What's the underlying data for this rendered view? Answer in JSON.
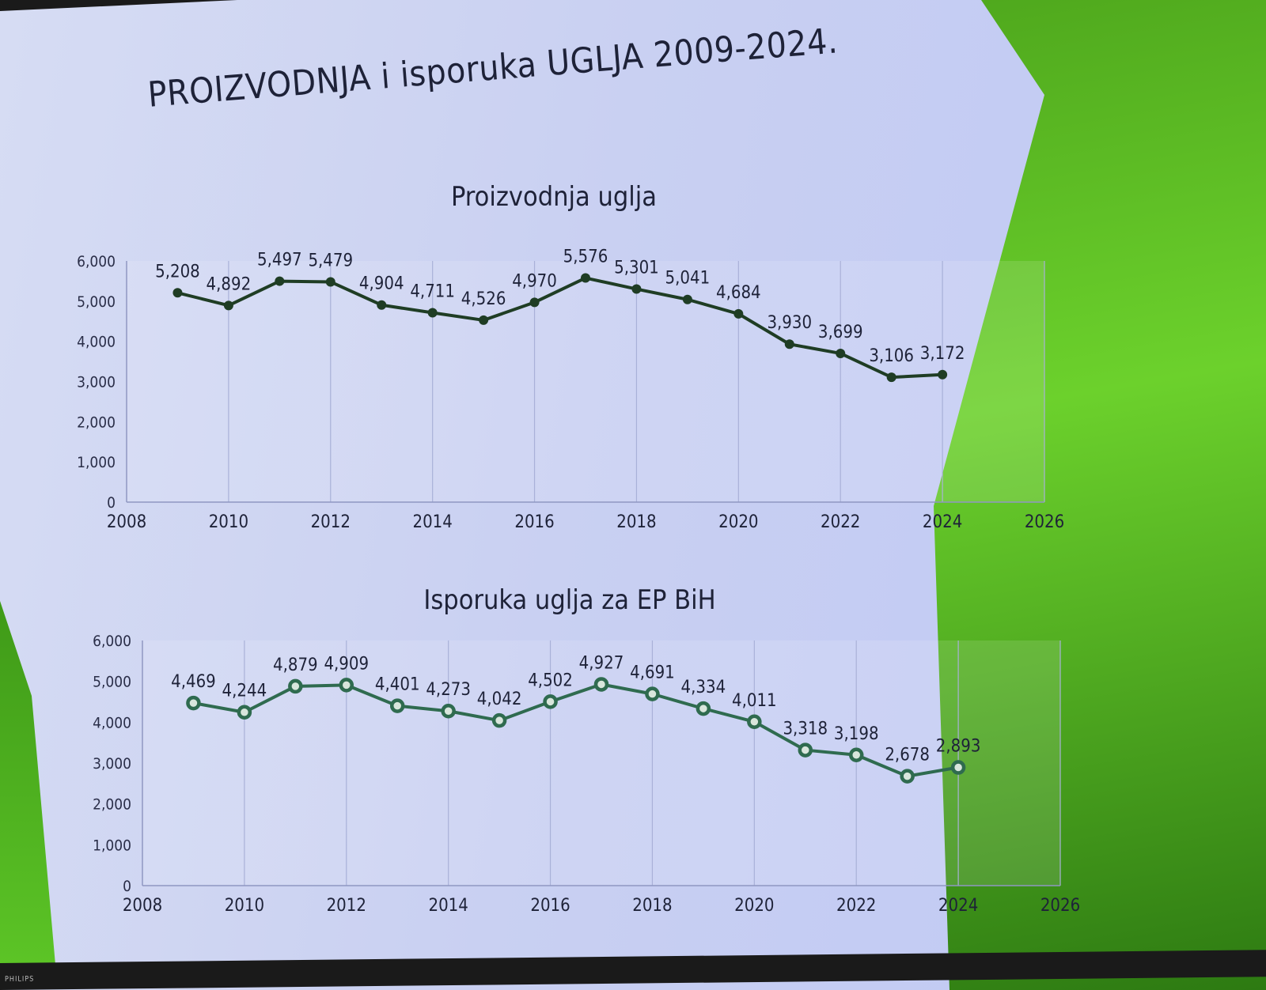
{
  "slide": {
    "title": "PROIZVODNJA i isporuka UGLJA 2009-2024.",
    "brand": "PHILIPS"
  },
  "colors": {
    "background": "#c9d0f2",
    "accent_green": "#5fc425",
    "line_chart1": "#1f3d24",
    "line_chart2": "#2f6b4f"
  },
  "chart_data": [
    {
      "type": "line",
      "title": "Proizvodnja uglja",
      "xlabel": "",
      "ylabel": "",
      "x": [
        2009,
        2010,
        2011,
        2012,
        2013,
        2014,
        2015,
        2016,
        2017,
        2018,
        2019,
        2020,
        2021,
        2022,
        2023,
        2024
      ],
      "values": [
        5208,
        4892,
        5497,
        5479,
        4904,
        4711,
        4526,
        4970,
        5576,
        5301,
        5041,
        4684,
        3930,
        3699,
        3106,
        3172
      ],
      "data_labels": [
        "5,208",
        "4,892",
        "5,497",
        "5,479",
        "4,904",
        "4,711",
        "4,526",
        "4,970",
        "5,576",
        "5,301",
        "5,041",
        "4,684",
        "3,930",
        "3,699",
        "3,106",
        "3,172"
      ],
      "xlim": [
        2008,
        2026
      ],
      "ylim": [
        0,
        6000
      ],
      "xticks": [
        "2008",
        "2010",
        "2012",
        "2014",
        "2016",
        "2018",
        "2020",
        "2022",
        "2024",
        "2026"
      ],
      "yticks": [
        "0",
        "1,000",
        "2,000",
        "3,000",
        "4,000",
        "5,000",
        "6,000"
      ],
      "marker": "filled-circle",
      "grid": "vertical"
    },
    {
      "type": "line",
      "title": "Isporuka uglja za EP BiH",
      "xlabel": "",
      "ylabel": "",
      "x": [
        2009,
        2010,
        2011,
        2012,
        2013,
        2014,
        2015,
        2016,
        2017,
        2018,
        2019,
        2020,
        2021,
        2022,
        2023,
        2024
      ],
      "values": [
        4469,
        4244,
        4879,
        4909,
        4401,
        4273,
        4042,
        4502,
        4927,
        4691,
        4334,
        4011,
        3318,
        3198,
        2678,
        2893
      ],
      "data_labels": [
        "4,469",
        "4,244",
        "4,879",
        "4,909",
        "4,401",
        "4,273",
        "4,042",
        "4,502",
        "4,927",
        "4,691",
        "4,334",
        "4,011",
        "3,318",
        "3,198",
        "2,678",
        "2,893"
      ],
      "xlim": [
        2008,
        2026
      ],
      "ylim": [
        0,
        6000
      ],
      "xticks": [
        "2008",
        "2010",
        "2012",
        "2014",
        "2016",
        "2018",
        "2020",
        "2022",
        "2024",
        "2026"
      ],
      "yticks": [
        "0",
        "1,000",
        "2,000",
        "3,000",
        "4,000",
        "5,000",
        "6,000"
      ],
      "marker": "ring",
      "grid": "vertical"
    }
  ]
}
